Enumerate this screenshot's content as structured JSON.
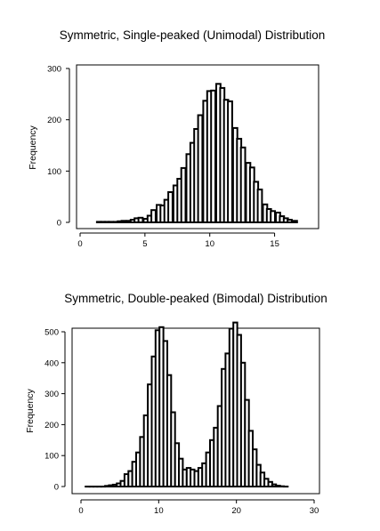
{
  "chart_data": [
    {
      "type": "bar",
      "title": "Symmetric, Single-peaked (Unimodal) Distribution",
      "xlabel": "",
      "ylabel": "Frequency",
      "xlim": [
        0,
        17.5
      ],
      "ylim": [
        0,
        300
      ],
      "xticks": [
        0,
        5,
        10,
        15
      ],
      "yticks": [
        0,
        100,
        200,
        300
      ],
      "bin_width": 0.33,
      "x": [
        1.3,
        1.6,
        1.9,
        2.2,
        2.6,
        2.9,
        3.2,
        3.6,
        3.9,
        4.2,
        4.5,
        4.9,
        5.2,
        5.5,
        5.9,
        6.2,
        6.5,
        6.8,
        7.2,
        7.5,
        7.8,
        8.2,
        8.5,
        8.8,
        9.1,
        9.5,
        9.8,
        10.1,
        10.5,
        10.8,
        11.1,
        11.4,
        11.8,
        12.1,
        12.4,
        12.8,
        13.1,
        13.4,
        13.7,
        14.1,
        14.4,
        14.7,
        15.1,
        15.4,
        15.7,
        16.0,
        16.4
      ],
      "values": [
        1,
        1,
        1,
        1,
        1,
        2,
        3,
        3,
        5,
        8,
        9,
        7,
        13,
        24,
        34,
        33,
        44,
        59,
        72,
        85,
        106,
        133,
        155,
        182,
        209,
        237,
        256,
        257,
        270,
        262,
        239,
        236,
        184,
        163,
        146,
        116,
        107,
        79,
        64,
        35,
        26,
        22,
        19,
        12,
        8,
        5,
        3
      ]
    },
    {
      "type": "bar",
      "title": "Symmetric, Double-peaked (Bimodal) Distribution",
      "xlabel": "",
      "ylabel": "Frequency",
      "xlim": [
        0,
        30
      ],
      "ylim": [
        0,
        540
      ],
      "xticks": [
        0,
        10,
        20,
        30
      ],
      "yticks": [
        0,
        100,
        200,
        300,
        400,
        500
      ],
      "bin_width": 0.5,
      "x": [
        0.6,
        1.1,
        1.6,
        2.1,
        2.6,
        3.1,
        3.6,
        4.1,
        4.6,
        5.1,
        5.6,
        6.1,
        6.6,
        7.1,
        7.6,
        8.1,
        8.6,
        9.1,
        9.6,
        10.1,
        10.6,
        11.1,
        11.6,
        12.1,
        12.6,
        13.1,
        13.6,
        14.1,
        14.6,
        15.1,
        15.6,
        16.1,
        16.6,
        17.1,
        17.6,
        18.1,
        18.6,
        19.1,
        19.6,
        20.1,
        20.6,
        21.1,
        21.6,
        22.1,
        22.6,
        23.1,
        23.6,
        24.1,
        24.6,
        25.1,
        25.6,
        26.1
      ],
      "values": [
        0,
        0,
        0,
        0,
        0,
        2,
        4,
        6,
        10,
        18,
        40,
        50,
        80,
        110,
        160,
        230,
        330,
        420,
        505,
        515,
        470,
        360,
        240,
        140,
        90,
        55,
        60,
        55,
        50,
        60,
        75,
        110,
        150,
        190,
        260,
        380,
        430,
        510,
        530,
        490,
        400,
        280,
        180,
        120,
        70,
        45,
        25,
        15,
        7,
        3,
        1,
        0
      ]
    }
  ]
}
